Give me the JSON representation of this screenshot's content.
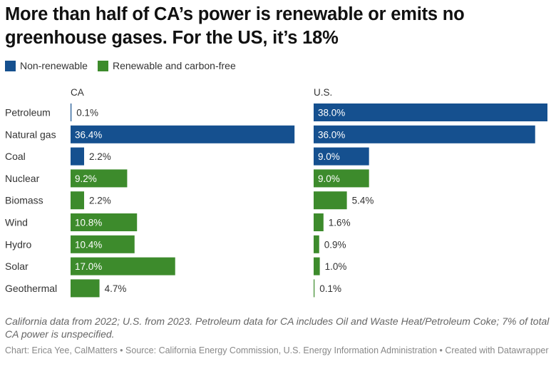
{
  "title": "More than half of CA’s power is renewable or emits no greenhouse gases. For the US, it’s 18%",
  "legend": [
    {
      "label": "Non-renewable",
      "color": "#15508f"
    },
    {
      "label": "Renewable and carbon-free",
      "color": "#3d8b2c"
    }
  ],
  "chart_data": {
    "type": "bar",
    "orientation": "horizontal",
    "categories": [
      "Petroleum",
      "Natural gas",
      "Coal",
      "Nuclear",
      "Biomass",
      "Wind",
      "Hydro",
      "Solar",
      "Geothermal"
    ],
    "category_type": [
      "non-renewable",
      "non-renewable",
      "non-renewable",
      "renewable",
      "renewable",
      "renewable",
      "renewable",
      "renewable",
      "renewable"
    ],
    "series": [
      {
        "name": "CA",
        "values": [
          0.1,
          36.4,
          2.2,
          9.2,
          2.2,
          10.8,
          10.4,
          17.0,
          4.7
        ]
      },
      {
        "name": "U.S.",
        "values": [
          38.0,
          36.0,
          9.0,
          9.0,
          5.4,
          1.6,
          0.9,
          1.0,
          0.1
        ]
      }
    ],
    "colors": {
      "non-renewable": "#15508f",
      "renewable": "#3d8b2c"
    },
    "xlim": [
      0,
      38
    ],
    "value_suffix": "%"
  },
  "notes": "California data from 2022; U.S. from 2023. Petroleum data for CA includes Oil and Waste Heat/Petroleum Coke; 7% of total CA power is unspecified.",
  "credit": "Chart: Erica Yee, CalMatters • Source: California Energy Commission, U.S. Energy Information Administration • Created with Datawrapper"
}
